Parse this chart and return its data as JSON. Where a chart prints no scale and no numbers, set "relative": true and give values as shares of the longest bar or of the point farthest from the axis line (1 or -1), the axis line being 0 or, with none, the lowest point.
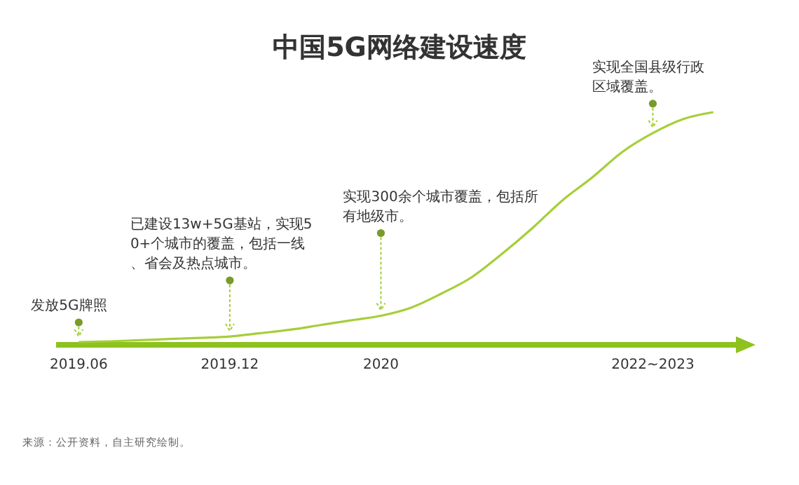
{
  "chart_data": {
    "type": "line",
    "title": "中国5G网络建设速度",
    "relative": true,
    "categories": [
      "2019.06",
      null,
      null,
      null,
      null,
      "2019.12",
      null,
      null,
      null,
      null,
      "2020",
      null,
      null,
      null,
      null,
      null,
      null,
      null,
      null,
      "2022~2023",
      null,
      null
    ],
    "series": [
      {
        "color": "#a6ce39",
        "values": [
          0.012,
          0.015,
          0.02,
          0.025,
          0.03,
          0.036,
          0.05,
          0.065,
          0.085,
          0.105,
          0.125,
          0.16,
          0.22,
          0.29,
          0.39,
          0.5,
          0.62,
          0.72,
          0.83,
          0.91,
          0.97,
          1
        ]
      }
    ],
    "annotations": [
      {
        "text": "发放5G牌照",
        "x": "2019.06",
        "y": 0.012
      },
      {
        "text": "已建设13w+5G基站，实现50+个城市的覆盖，包括一线、省会及热点城市。",
        "x": "2019.12",
        "y": 0.036
      },
      {
        "text": "实现300余个城市覆盖，包括所有地级市。",
        "x": "2020",
        "y": 0.125
      },
      {
        "text": "实现全国县级行政区域覆盖。",
        "x": "2022~2023",
        "y": 0.91
      },
      "来源：公开资料，自主研究绘制。"
    ]
  }
}
